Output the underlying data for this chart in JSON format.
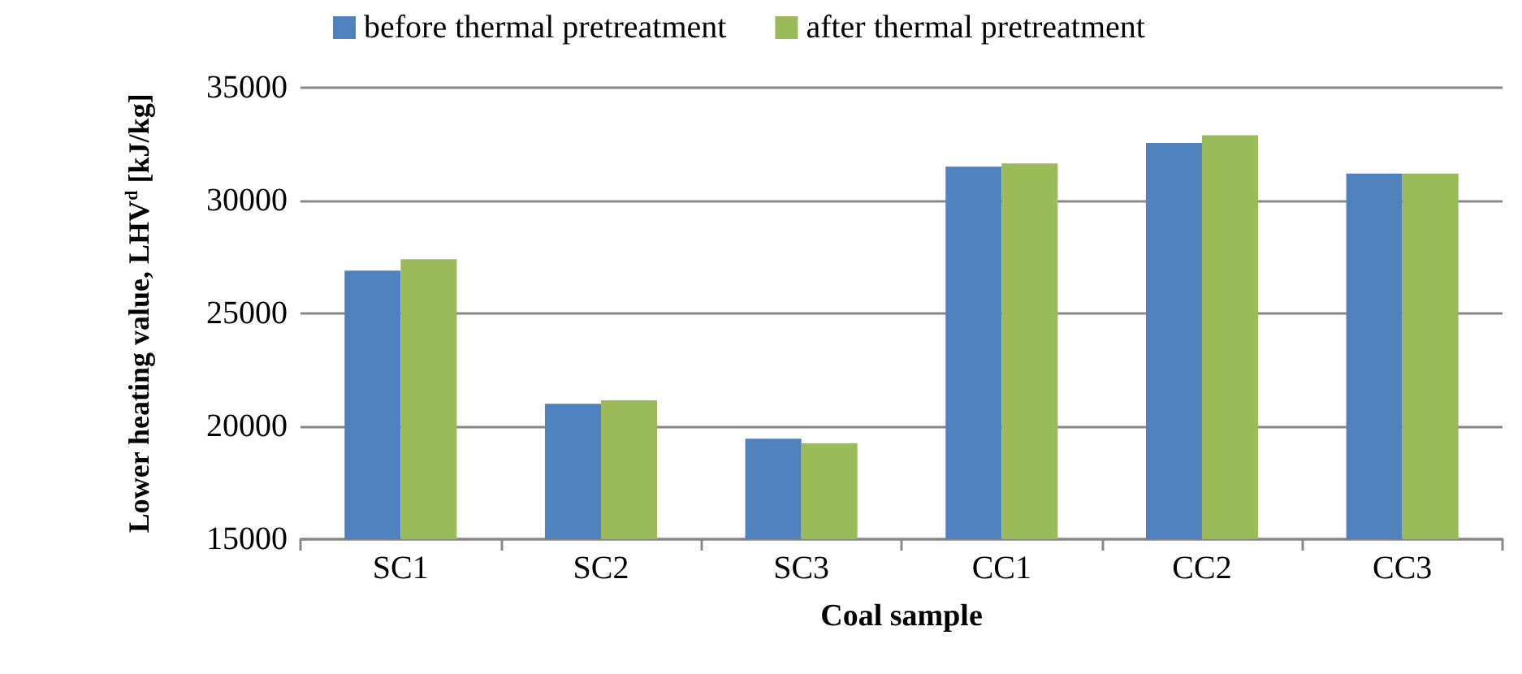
{
  "chart_data": {
    "type": "bar",
    "xlabel": "Coal sample",
    "ylabel": "Lower heating value, LHV$^{d}$ [kJ/kg]",
    "categories": [
      "SC1",
      "SC2",
      "SC3",
      "CC1",
      "CC2",
      "CC3"
    ],
    "series": [
      {
        "name": "before thermal pretreatment",
        "color": "#4f81bd",
        "values": [
          26900,
          21000,
          19450,
          31500,
          32550,
          31200
        ]
      },
      {
        "name": "after thermal pretreatment",
        "color": "#9bbb59",
        "values": [
          27400,
          21150,
          19250,
          31650,
          32900,
          31200
        ]
      }
    ],
    "ylim": [
      15000,
      35000
    ],
    "yticks": [
      15000,
      20000,
      25000,
      30000,
      35000
    ],
    "grid": "y",
    "legend": "top"
  }
}
